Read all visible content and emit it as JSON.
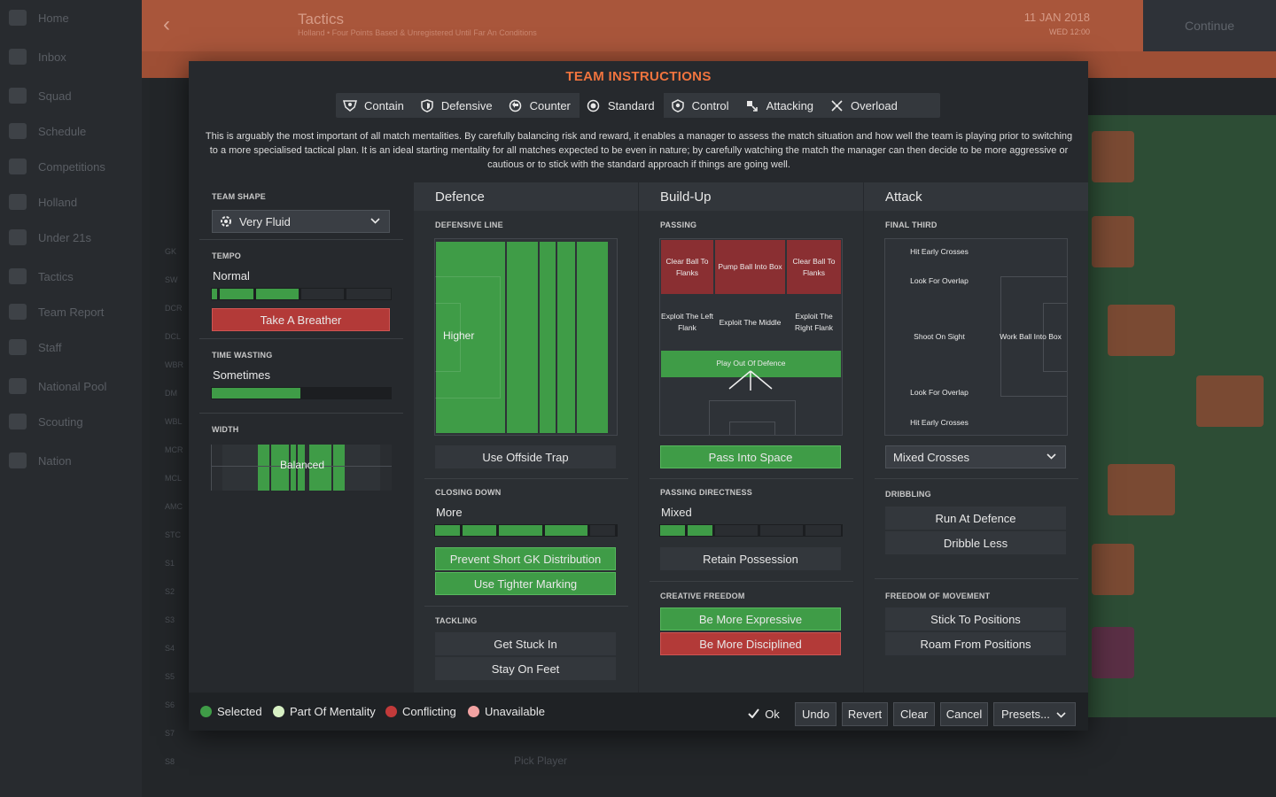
{
  "background": {
    "sidebar": [
      "Home",
      "Inbox",
      "Squad",
      "Schedule",
      "Competitions",
      "Holland",
      "Under 21s",
      "Tactics",
      "Team Report",
      "Staff",
      "National Pool",
      "Scouting",
      "Nation"
    ],
    "page_title": "Tactics",
    "subtitle": "Holland • Four Points Based & Unregistered Until Far An Conditions",
    "date": "11 JAN 2018",
    "date_sub": "WED 12:00",
    "continue_label": "Continue",
    "positions": [
      "GK",
      "SW",
      "DCR",
      "DCL",
      "WBR",
      "DM",
      "WBL",
      "MCR",
      "MCL",
      "AMC",
      "STC",
      "S1",
      "S2",
      "S3",
      "S4",
      "S5",
      "S6",
      "S7",
      "S8"
    ],
    "pick_player": "Pick Player"
  },
  "modal": {
    "title": "TEAM INSTRUCTIONS",
    "tabs": [
      "Contain",
      "Defensive",
      "Counter",
      "Standard",
      "Control",
      "Attacking",
      "Overload"
    ],
    "active_tab": "Standard",
    "description": "This is arguably the most important of all match mentalities. By carefully balancing risk and reward, it enables a manager to assess the match situation and how well the team is playing prior to switching to a more specialised tactical plan. It is an ideal starting mentality for all matches expected to be even in nature; by carefully watching the match the manager can then decide to be more aggressive or cautious or to stick with the standard approach if things are going well."
  },
  "general": {
    "team_shape_label": "TEAM SHAPE",
    "team_shape_value": "Very Fluid",
    "tempo_label": "TEMPO",
    "tempo_value": "Normal",
    "tempo_button": "Take A Breather",
    "time_wasting_label": "TIME WASTING",
    "time_wasting_value": "Sometimes",
    "width_label": "WIDTH",
    "width_value": "Balanced"
  },
  "defence": {
    "header": "Defence",
    "line_label": "DEFENSIVE LINE",
    "line_value": "Higher",
    "offside": "Use Offside Trap",
    "closing_label": "CLOSING DOWN",
    "closing_value": "More",
    "closing_buttons": [
      "Prevent Short GK Distribution",
      "Use Tighter Marking"
    ],
    "tackling_label": "TACKLING",
    "tackling_buttons": [
      "Get Stuck In",
      "Stay On Feet"
    ]
  },
  "buildup": {
    "header": "Build-Up",
    "passing_label": "PASSING",
    "zones": {
      "clear_left": "Clear Ball To Flanks",
      "pump": "Pump Ball Into Box",
      "clear_right": "Clear Ball To Flanks",
      "exploit_left": "Exploit The Left Flank",
      "exploit_middle": "Exploit The Middle",
      "exploit_right": "Exploit The Right Flank",
      "play_out": "Play Out Of Defence"
    },
    "space_button": "Pass Into Space",
    "directness_label": "PASSING DIRECTNESS",
    "directness_value": "Mixed",
    "retain": "Retain Possession",
    "creative_label": "CREATIVE FREEDOM",
    "creative_buttons": [
      "Be More Expressive",
      "Be More Disciplined"
    ]
  },
  "attack": {
    "header": "Attack",
    "final_third_label": "FINAL THIRD",
    "zones": {
      "hit_top": "Hit Early Crosses",
      "overlap_top": "Look For Overlap",
      "shoot": "Shoot On Sight",
      "work": "Work Ball Into Box",
      "overlap_bottom": "Look For Overlap",
      "hit_bottom": "Hit Early Crosses"
    },
    "crosses_value": "Mixed Crosses",
    "dribbling_label": "DRIBBLING",
    "dribbling_buttons": [
      "Run At Defence",
      "Dribble Less"
    ],
    "freedom_label": "FREEDOM OF MOVEMENT",
    "freedom_buttons": [
      "Stick To Positions",
      "Roam From Positions"
    ]
  },
  "footer": {
    "legend": [
      "Selected",
      "Part Of Mentality",
      "Conflicting",
      "Unavailable"
    ],
    "legend_colors": [
      "#3f9c47",
      "#d7f0c4",
      "#c23a3a",
      "#f2a3a3"
    ],
    "ok": "Ok",
    "undo": "Undo",
    "revert": "Revert",
    "clear": "Clear",
    "cancel": "Cancel",
    "presets": "Presets..."
  },
  "levels": {
    "tempo_fraction": 0.5,
    "time_wasting_fraction": 0.5,
    "closing_down_fraction": 0.8,
    "directness_fraction": 0.33
  }
}
